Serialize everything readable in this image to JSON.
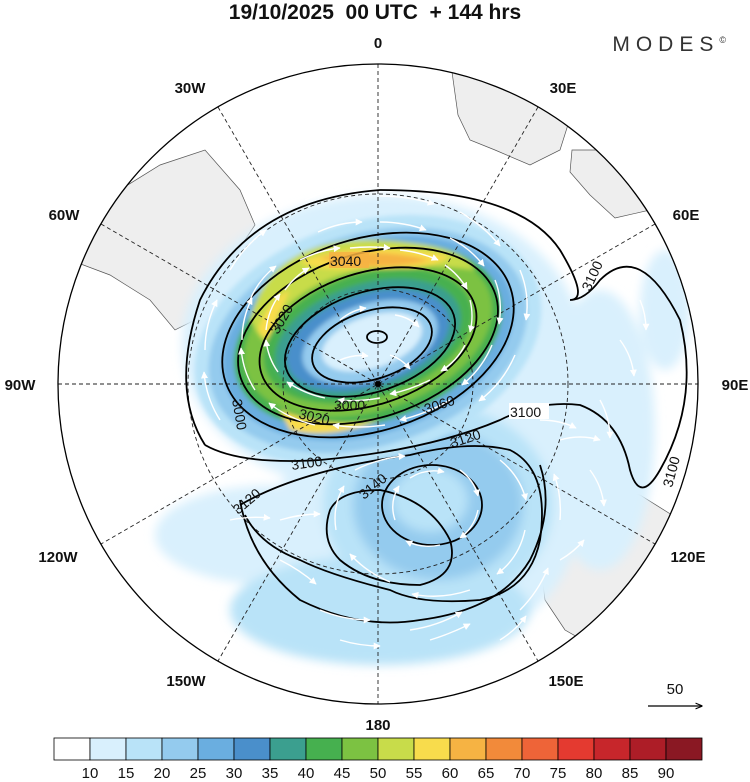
{
  "header": {
    "title": "19/10/2025  00 UTC  + 144 hrs",
    "brand": "MODES",
    "brand_mark": "©"
  },
  "map": {
    "projection": "south polar stereographic",
    "longitude_labels": {
      "top": "0",
      "top_right": "30E",
      "upper_right": "60E",
      "right": "90E",
      "lower_right": "120E",
      "bottom_right": "150E",
      "bottom": "180",
      "bottom_left": "150W",
      "lower_left": "120W",
      "left": "90W",
      "upper_left": "60W",
      "top_left": "30W"
    },
    "contour_labels": {
      "c3040": "3040",
      "c3020a": "3020",
      "c3020b": "3020",
      "c3000a": "3000",
      "c3000b": "3000",
      "c3060": "3060",
      "c3100a": "3100",
      "c3100b": "3100",
      "c3100c": "3100",
      "c3100d": "3100",
      "c3120a": "3120",
      "c3120b": "3120",
      "c3140": "3140"
    },
    "vector_reference": {
      "label": "50"
    }
  },
  "colorbar": {
    "labels": [
      "10",
      "15",
      "20",
      "25",
      "30",
      "35",
      "40",
      "45",
      "50",
      "55",
      "60",
      "65",
      "70",
      "75",
      "80",
      "85",
      "90"
    ],
    "colors": [
      "#ffffff",
      "#d9f0fd",
      "#b9e3f8",
      "#94cbee",
      "#6aaee0",
      "#4a8fcb",
      "#3b9f8f",
      "#46b04f",
      "#7cc242",
      "#c8dc4a",
      "#f8dc4c",
      "#f6b343",
      "#f28a3a",
      "#ee6438",
      "#e43a30",
      "#c7262b",
      "#ad1d27",
      "#8a1823"
    ]
  },
  "colors": {
    "land": "#f0f0f0",
    "ocean": "#ffffff",
    "vector": "#ffffff",
    "contour": "#000000"
  }
}
